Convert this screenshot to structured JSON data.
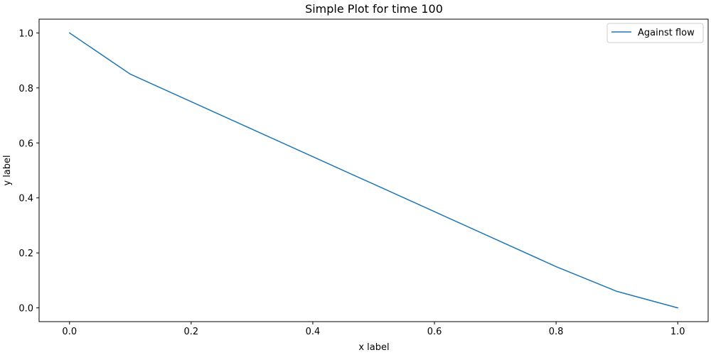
{
  "chart_data": {
    "type": "line",
    "title": "Simple Plot for time 100",
    "xlabel": "x label",
    "ylabel": "y label",
    "xlim": [
      -0.05,
      1.05
    ],
    "ylim": [
      -0.05,
      1.05
    ],
    "xticks": [
      0.0,
      0.2,
      0.4,
      0.6,
      0.8,
      1.0
    ],
    "xtick_labels": [
      "0.0",
      "0.2",
      "0.4",
      "0.6",
      "0.8",
      "1.0"
    ],
    "yticks": [
      0.0,
      0.2,
      0.4,
      0.6,
      0.8,
      1.0
    ],
    "ytick_labels": [
      "0.0",
      "0.2",
      "0.4",
      "0.6",
      "0.8",
      "1.0"
    ],
    "grid": false,
    "legend_position": "top-right",
    "series": [
      {
        "name": "Against flow",
        "color": "#1f77b4",
        "x": [
          0.0,
          0.1,
          0.2,
          0.3,
          0.4,
          0.5,
          0.6,
          0.7,
          0.8,
          0.9,
          1.0
        ],
        "y": [
          1.0,
          0.85,
          0.75,
          0.65,
          0.55,
          0.45,
          0.35,
          0.25,
          0.15,
          0.06,
          0.0
        ]
      }
    ]
  }
}
